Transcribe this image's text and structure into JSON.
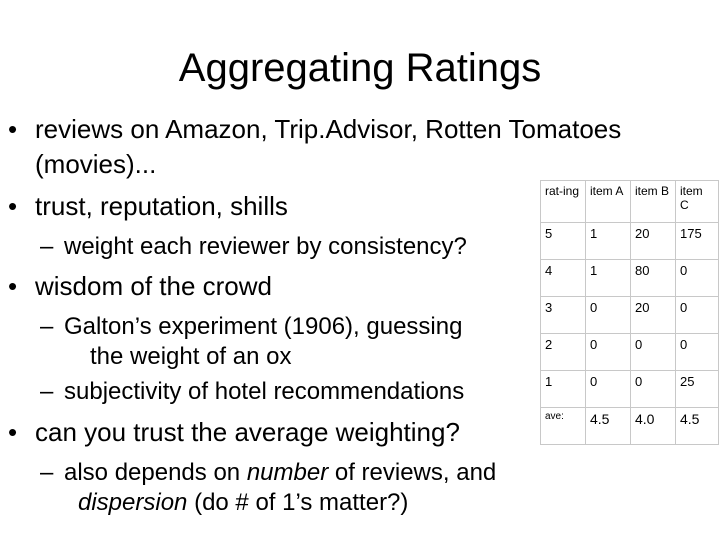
{
  "header": {
    "title": "Aggregating Ratings"
  },
  "bullets": [
    {
      "text": "reviews on Amazon, Trip.Advisor, Rotten Tomatoes (movies)..."
    },
    {
      "text": "trust, reputation, shills",
      "subs": [
        {
          "segments": [
            {
              "text": "weight each reviewer by consistency?",
              "italic": false
            }
          ]
        }
      ]
    },
    {
      "text": "wisdom of the crowd",
      "subs": [
        {
          "segments": [
            {
              "text": "Galton’s experiment (1906), guessing the weight of an ox",
              "italic": false
            }
          ]
        },
        {
          "segments": [
            {
              "text": "subjectivity of hotel recommendations",
              "italic": false
            }
          ]
        }
      ]
    },
    {
      "text": "can you trust the average weighting?",
      "subs": [
        {
          "segments": [
            {
              "text": "also depends on ",
              "italic": false
            },
            {
              "text": "number",
              "italic": true
            },
            {
              "text": " of reviews, and ",
              "italic": false
            },
            {
              "text": "dispersion",
              "italic": true
            },
            {
              "text": " (do # of 1’s matter?)",
              "italic": false
            }
          ]
        }
      ]
    }
  ],
  "table": {
    "header": [
      "rat-ing",
      "item A",
      "item B",
      "item C"
    ],
    "rows": [
      [
        "5",
        "1",
        "20",
        "175"
      ],
      [
        "4",
        "1",
        "80",
        "0"
      ],
      [
        "3",
        "0",
        "20",
        "0"
      ],
      [
        "2",
        "0",
        "0",
        "0"
      ],
      [
        "1",
        "0",
        "0",
        "25"
      ],
      [
        "ave:",
        "4.5",
        "4.0",
        "4.5"
      ]
    ]
  }
}
